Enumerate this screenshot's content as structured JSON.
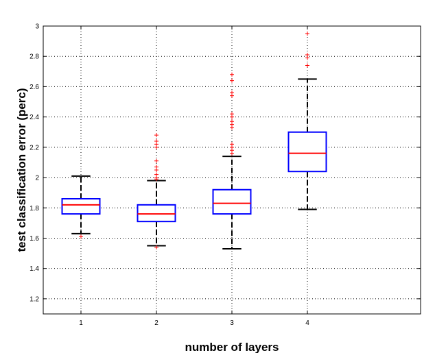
{
  "chart_data": {
    "type": "box",
    "title": "",
    "xlabel": "number of layers",
    "ylabel": "test classification error (perc)",
    "categories": [
      "1",
      "2",
      "3",
      "4"
    ],
    "xlim": [
      0.5,
      5.5
    ],
    "ylim": [
      1.1,
      3.0
    ],
    "yticks": [
      "1.2",
      "1.4",
      "1.6",
      "1.8",
      "2",
      "2.2",
      "2.4",
      "2.6",
      "2.8",
      "3"
    ],
    "grid": true,
    "colors": {
      "box": "#0000ff",
      "median": "#ff0000",
      "whisker": "#000000",
      "outlier": "#ff0000"
    },
    "boxes": [
      {
        "x": 1,
        "whisker_low": 1.63,
        "q1": 1.76,
        "median": 1.82,
        "q3": 1.86,
        "whisker_high": 2.01,
        "outliers": [
          1.61
        ]
      },
      {
        "x": 2,
        "whisker_low": 1.55,
        "q1": 1.71,
        "median": 1.76,
        "q3": 1.82,
        "whisker_high": 1.98,
        "outliers": [
          1.54,
          1.99,
          2.0,
          2.02,
          2.05,
          2.07,
          2.11,
          2.2,
          2.22,
          2.24,
          2.28
        ]
      },
      {
        "x": 3,
        "whisker_low": 1.53,
        "q1": 1.76,
        "median": 1.83,
        "q3": 1.92,
        "whisker_high": 2.14,
        "outliers": [
          2.16,
          2.18,
          2.2,
          2.22,
          2.33,
          2.35,
          2.37,
          2.4,
          2.42,
          2.54,
          2.56,
          2.64,
          2.68
        ]
      },
      {
        "x": 4,
        "whisker_low": 1.79,
        "q1": 2.04,
        "median": 2.16,
        "q3": 2.3,
        "whisker_high": 2.65,
        "outliers": [
          2.74,
          2.79,
          2.81,
          2.95
        ]
      }
    ]
  }
}
